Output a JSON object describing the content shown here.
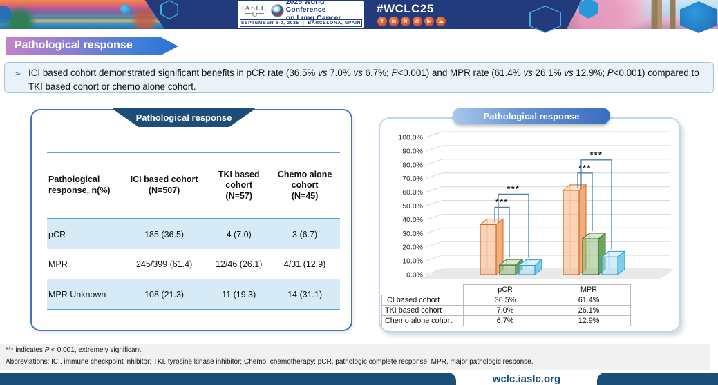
{
  "header": {
    "org_name": "IASLC",
    "conference_line1": "2025 World Conference",
    "conference_line2": "on Lung Cancer",
    "date": "SEPTEMBER 6-9, 2025",
    "separator": "|",
    "location": "BARCELONA, SPAIN",
    "hashtag": "#WCLC25",
    "social_icons": [
      {
        "name": "facebook-icon",
        "glyph": "f"
      },
      {
        "name": "linkedin-icon",
        "glyph": "in"
      },
      {
        "name": "x-icon",
        "glyph": "✕"
      },
      {
        "name": "instagram-icon",
        "glyph": "◎"
      },
      {
        "name": "youtube-icon",
        "glyph": "▶"
      },
      {
        "name": "chat-icon",
        "glyph": "☁"
      }
    ]
  },
  "title_banner": {
    "text": "Pathological response"
  },
  "bullet": {
    "marker": "➢",
    "segments": [
      {
        "t": "ICI based cohort demonstrated significant benefits in pCR rate (36.5% "
      },
      {
        "t": "vs",
        "i": true
      },
      {
        "t": " 7.0% "
      },
      {
        "t": "vs",
        "i": true
      },
      {
        "t": " 6.7%; "
      },
      {
        "t": "P",
        "i": true
      },
      {
        "t": "<0.001) and MPR rate (61.4% "
      },
      {
        "t": "vs",
        "i": true
      },
      {
        "t": " 26.1% "
      },
      {
        "t": "vs",
        "i": true
      },
      {
        "t": " 12.9%; "
      },
      {
        "t": "P",
        "i": true
      },
      {
        "t": "<0.001) compared to TKI based cohort or chemo alone cohort."
      }
    ]
  },
  "left_panel": {
    "banner": "Pathological response",
    "col_headers": [
      [
        "Pathological",
        "response, n(%)"
      ],
      [
        "ICI based cohort",
        "(N=507)"
      ],
      [
        "TKI based",
        "cohort",
        "(N=57)"
      ],
      [
        "Chemo alone",
        "cohort",
        "(N=45)"
      ]
    ],
    "rows": [
      {
        "label": "pCR",
        "values": [
          "185 (36.5)",
          "4 (7.0)",
          "3 (6.7)"
        ]
      },
      {
        "label": "MPR",
        "values": [
          "245/399 (61.4)",
          "12/46 (26.1)",
          "4/31 (12.9)"
        ]
      },
      {
        "label": "MPR Unknown",
        "values": [
          "108 (21.3)",
          "11 (19.3)",
          "14 (31.1)"
        ]
      }
    ]
  },
  "chart_data": {
    "type": "bar",
    "style": "3d",
    "title": "Pathological response",
    "categories": [
      "pCR",
      "MPR"
    ],
    "series": [
      {
        "name": "ICI based cohort",
        "values": [
          36.5,
          61.4
        ],
        "box_colors": {
          "stroke": "#D2691E",
          "front": "#F4B183",
          "top": "#FBE3D2",
          "side": "#F0AE7E"
        }
      },
      {
        "name": "TKI based cohort",
        "values": [
          7.0,
          26.1
        ],
        "box_colors": {
          "stroke": "#3E6E33",
          "front": "#8FBC7E",
          "top": "#D8E9CE",
          "side": "#6FA35E"
        }
      },
      {
        "name": "Chemo alone cohort",
        "values": [
          6.7,
          12.9
        ],
        "box_colors": {
          "stroke": "#2E9BD6",
          "front": "#A8DFF5",
          "top": "#DDF2FB",
          "side": "#7ECDEE"
        }
      }
    ],
    "ylim": [
      0,
      100
    ],
    "y_tick_step": 10,
    "y_tick_suffix": ".0%",
    "grid": true,
    "legend_position": "table-below",
    "significance": [
      {
        "category_index": 0,
        "from": 0,
        "to": 1,
        "label": "***"
      },
      {
        "category_index": 0,
        "from": 0,
        "to": 2,
        "label": "***"
      },
      {
        "category_index": 1,
        "from": 0,
        "to": 1,
        "label": "***"
      },
      {
        "category_index": 1,
        "from": 0,
        "to": 2,
        "label": "***"
      }
    ],
    "data_table": {
      "header": [
        "",
        "pCR",
        "MPR"
      ],
      "rows": [
        {
          "label": "ICI based cohort",
          "values": [
            "36.5%",
            "61.4%"
          ]
        },
        {
          "label": "TKI based cohort",
          "values": [
            "7.0%",
            "26.1%"
          ]
        },
        {
          "label": "Chemo alone cohort",
          "values": [
            "6.7%",
            "12.9%"
          ]
        }
      ]
    }
  },
  "footnotes": {
    "line1_segments": [
      {
        "t": "*** indicates "
      },
      {
        "t": "P",
        "i": true
      },
      {
        "t": " < 0.001, extremely significant."
      }
    ],
    "line2": "Abbreviations: ICI, immune checkpoint inhibitor; TKI, tyrosine kinase inhibitor; Chemo, chemotherapy;  pCR, pathologic complete response; MPR, major pathologic response."
  },
  "footer": {
    "url": "wclc.iaslc.org"
  },
  "colors": {
    "header_navy": "#223B7C",
    "brand_navy": "#1B4E79",
    "accent_blue": "#2E75B6",
    "panel_border_blue": "#4472C4",
    "panel_border_light": "#BFD6EC",
    "table_stripe": "#D7EBF6",
    "rule_blue": "#55A5D8",
    "grid_gray": "#D9D9D9",
    "significance_line": "#4E7FA8",
    "footnote_band": "#F1F1F2",
    "social_circle": "#D84A2B",
    "title_gradient": [
      "#C583C8",
      "#8E7FD2",
      "#2C6FD0"
    ],
    "chart_banner_gradient": [
      "#A8C6EC",
      "#3A6CC0"
    ]
  }
}
